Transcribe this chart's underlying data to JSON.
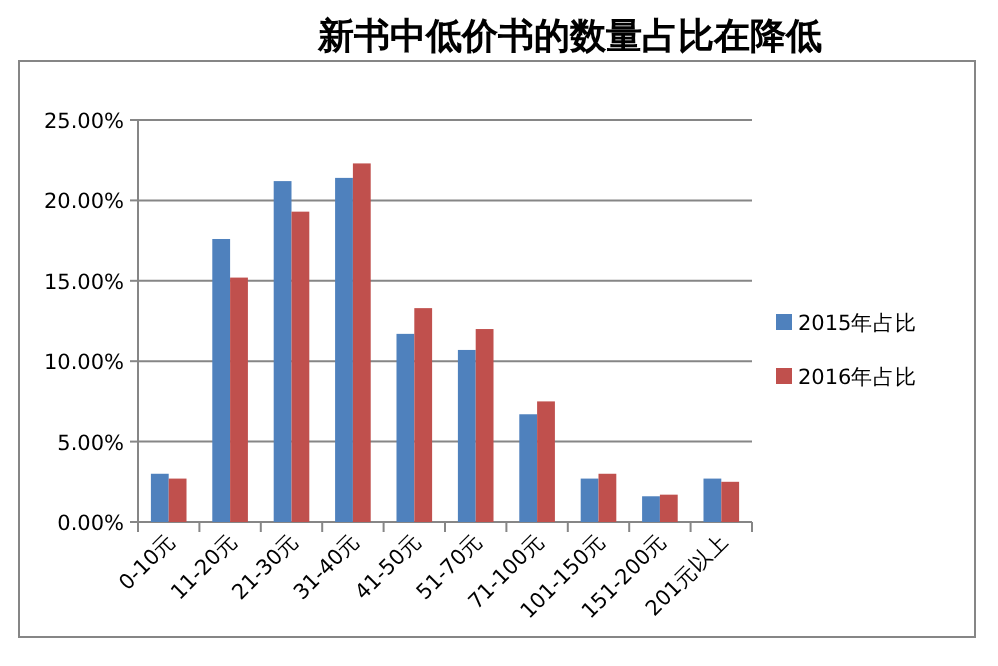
{
  "chart_data": {
    "type": "bar",
    "title": "新书中低价书的数量占比在降低",
    "categories": [
      "0-10元",
      "11-20元",
      "21-30元",
      "31-40元",
      "41-50元",
      "51-70元",
      "71-100元",
      "101-150元",
      "151-200元",
      "201元以上"
    ],
    "series": [
      {
        "name": "2015年占比",
        "color": "#4f81bd",
        "values": [
          3.0,
          17.6,
          21.2,
          21.4,
          11.7,
          10.7,
          6.7,
          2.7,
          1.6,
          2.7
        ]
      },
      {
        "name": "2016年占比",
        "color": "#c0504d",
        "values": [
          2.7,
          15.2,
          19.3,
          22.3,
          13.3,
          12.0,
          7.5,
          3.0,
          1.7,
          2.5
        ]
      }
    ],
    "ylim": [
      0,
      25
    ],
    "yticks": [
      {
        "value": 0,
        "label": "0.00%"
      },
      {
        "value": 5,
        "label": "5.00%"
      },
      {
        "value": 10,
        "label": "10.00%"
      },
      {
        "value": 15,
        "label": "15.00%"
      },
      {
        "value": 20,
        "label": "20.00%"
      },
      {
        "value": 25,
        "label": "25.00%"
      }
    ],
    "grid": "y",
    "legend": "right"
  }
}
